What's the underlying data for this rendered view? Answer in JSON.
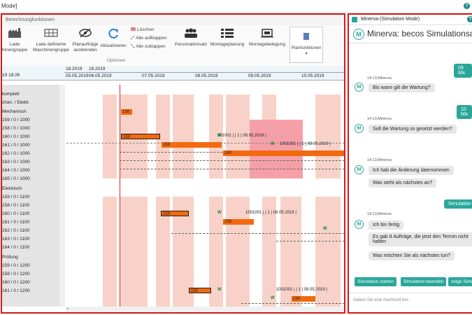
{
  "titlebar": {
    "text": "Mode]",
    "help": "?"
  },
  "ribbon": {
    "tab": "Berechnungfunktionen",
    "buttons": [
      {
        "label": "Lade\nhinengruppe"
      },
      {
        "label": "Lade definierte\nMaschinengruppe"
      },
      {
        "label": "Planaufträge\nausblenden"
      },
      {
        "label": "Aktualisieren"
      },
      {
        "label": "Personaleinsatz"
      },
      {
        "label": "Montageplanung"
      },
      {
        "label": "Montagebelegung"
      },
      {
        "label": "Planfunktionen"
      }
    ],
    "small": {
      "delete": "Löschen",
      "expand": "Alle aufklappen",
      "collapse": "Alle zuklappen"
    },
    "group": "Optionen"
  },
  "timeline": {
    "now": "19 18:26",
    "top": [
      "18.2019",
      "19.2019"
    ],
    "days": [
      "05.05.2019",
      "06.05.2019",
      "07.05.2019",
      "08.05.2019",
      "09.05.2019",
      "10.05.2019"
    ]
  },
  "rows": [
    "komplett",
    "chan. / Elektr.",
    "Mechanisch",
    "159 / 0 / 1000",
    "158 / 0 / 1000",
    "160 / 0 / 1000",
    "161 / 0 / 1000",
    "162 / 0 / 1000",
    "163 / 0 / 1000",
    "164 / 0 / 1000",
    "165 / 0 / 1000",
    "Elektrisch",
    "159 / 0 / 1100",
    "158 / 0 / 1100",
    "160 / 0 / 1100",
    "161 / 0 / 1100",
    "162 / 0 / 1100",
    "163 / 0 / 1100",
    "164 / 0 / 1100",
    "Prüfung",
    "159 / 0 / 1200",
    "158 / 0 / 1200",
    "160 / 0 / 1200",
    "161 / 0 / 1200"
  ],
  "bars": {
    "b156": "156",
    "b159a": "159",
    "b158a": "158",
    "b160a": "160",
    "b159b": "159",
    "b158b": "158",
    "b159c": "159",
    "b158c": "158",
    "t1": "001001 |  | 1 | 08.05.2019 |",
    "t2": "1001001 |  | 2 | 09.05.2019 |",
    "t3": "1001001 |  | 1 | 08.05.2019 |",
    "t4": "1001001 |  | 1 | 08.05.2019 |",
    "w": "W"
  },
  "side": {
    "title": "Minerva-(Simulation Mode)",
    "help": "?",
    "header": "Minerva: becos Simulationsas",
    "u1": "09 Ma",
    "u2": "10 Ma",
    "u3": "Simulation",
    "meta": "14:13,Minerva",
    "m1": "Bis wann gilt die Wartung?",
    "m2": "Soll die Wartung so gesetzt werden?",
    "m3": "Ich hab die Änderung übernommen",
    "m4": "Was steht als nächstes an?",
    "m5": "Ich bin fertig",
    "m6": "Es gab 8 Aufträge, die jetzt den Termin nicht halten",
    "m7": "Was möchten Sie als nächstes tun?",
    "btn1": "Simulation starten",
    "btn2": "Simulation beenden",
    "btn3": "zeige Simu",
    "placeholder": "Geben Sie eine Nachricht ein..."
  },
  "colors": {
    "frame": "#d01a1a",
    "teal": "#2aa79a",
    "bar": "#f26a10",
    "bg": "#f8d2c8",
    "hl": "#f5a0a8"
  }
}
